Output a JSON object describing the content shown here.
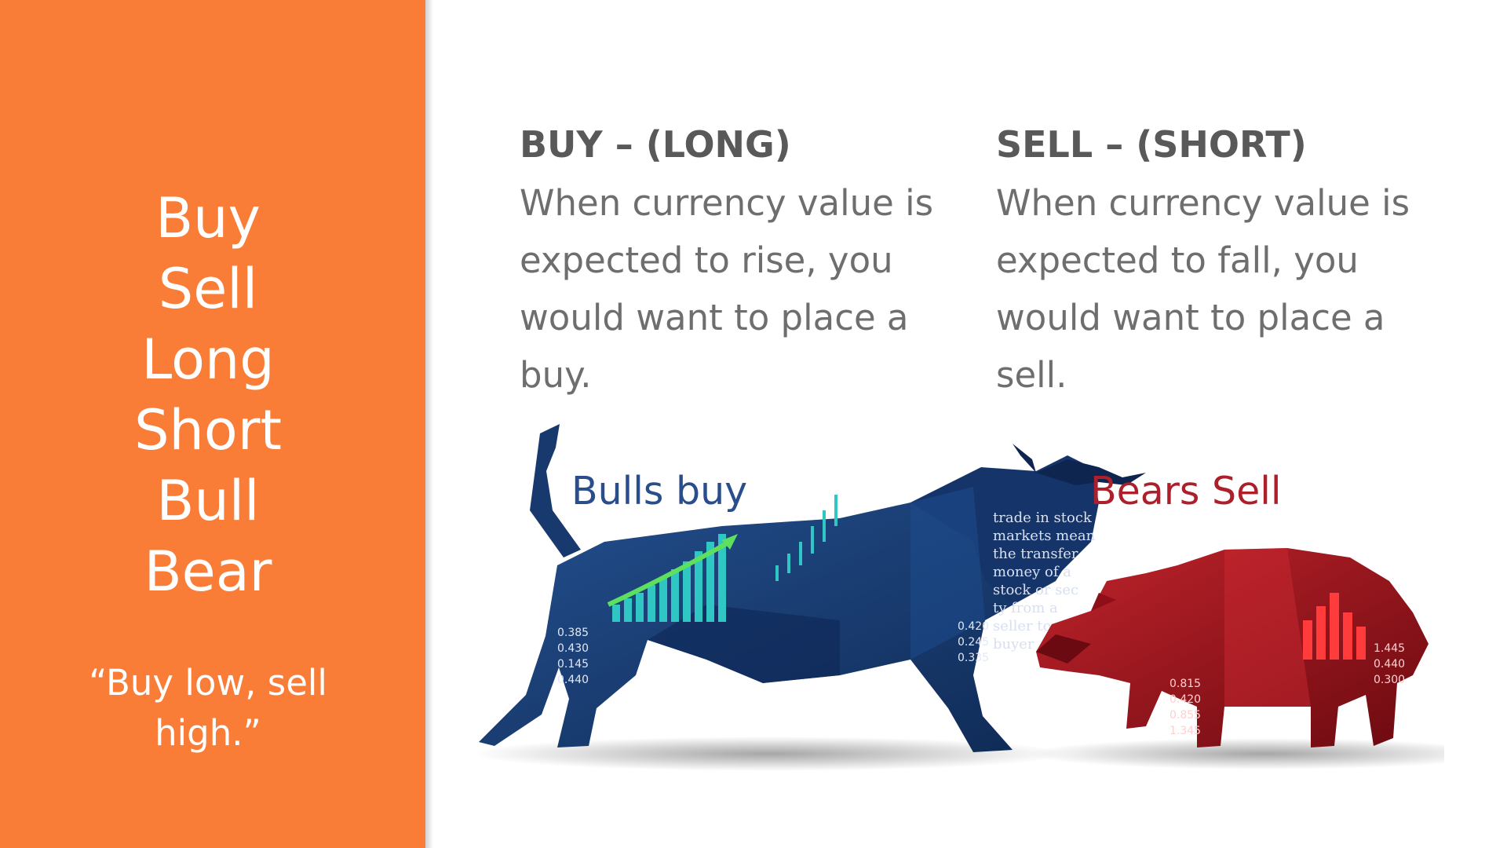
{
  "sidebar": {
    "terms": [
      "Buy",
      "Sell",
      "Long",
      "Short",
      "Bull",
      "Bear"
    ],
    "quote": "“Buy low, sell high.”"
  },
  "buy": {
    "title": "BUY – (LONG)",
    "body": "When currency value is expected to rise, you would want to place a buy."
  },
  "sell": {
    "title": "SELL – (SHORT)",
    "body": "When currency value is expected to fall, you would want to place a sell."
  },
  "illustration": {
    "bull_label": "Bulls buy",
    "bear_label": "Bears Sell",
    "bull_icon": "bull-icon",
    "bear_icon": "bear-icon",
    "colors": {
      "orange_panel": "#f97c37",
      "bull_blue": "#1d3f78",
      "bull_label": "#2a4e8c",
      "bear_red": "#a3121b",
      "bear_label": "#ad1f2a",
      "teal_bars": "#2fc6c4"
    }
  }
}
